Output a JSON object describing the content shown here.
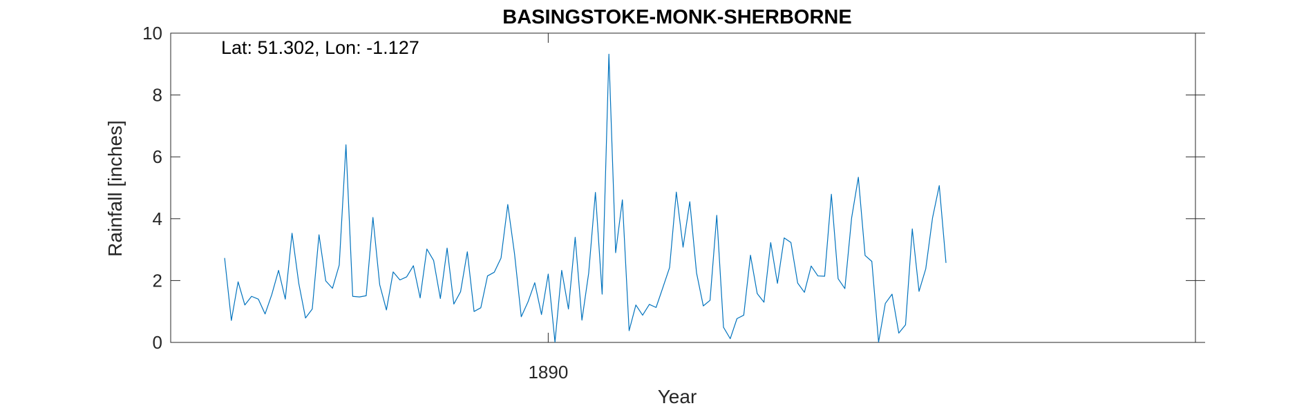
{
  "chart_data": {
    "type": "line",
    "title": "BASINGSTOKE-MONK-SHERBORNE",
    "annotation": "Lat: 51.302, Lon: -1.127",
    "xlabel": "Year",
    "ylabel": "Rainfall [inches]",
    "xlim": [
      1885.3333,
      1898.0
    ],
    "ylim": [
      0,
      10
    ],
    "x_ticks": [
      1890
    ],
    "x_tick_labels": [
      "1890"
    ],
    "y_ticks": [
      0,
      2,
      4,
      6,
      8,
      10
    ],
    "y_tick_labels": [
      "0",
      "2",
      "4",
      "6",
      "8",
      "10"
    ],
    "grid": false,
    "series": [
      {
        "name": "Rainfall",
        "color": "#0072BD",
        "x_start": 1886.0,
        "x_step": 0.083333,
        "values": [
          2.73,
          0.71,
          1.96,
          1.21,
          1.49,
          1.4,
          0.92,
          1.55,
          2.33,
          1.4,
          3.53,
          1.91,
          0.79,
          1.08,
          3.48,
          1.99,
          1.75,
          2.5,
          6.39,
          1.49,
          1.47,
          1.51,
          4.04,
          1.87,
          1.05,
          2.28,
          2.02,
          2.12,
          2.48,
          1.44,
          3.02,
          2.65,
          1.42,
          3.05,
          1.24,
          1.64,
          2.93,
          1.0,
          1.12,
          2.15,
          2.27,
          2.73,
          4.46,
          2.87,
          0.83,
          1.31,
          1.93,
          0.9,
          2.21,
          0.01,
          2.33,
          1.08,
          3.4,
          0.72,
          2.24,
          4.85,
          1.56,
          9.32,
          2.9,
          4.61,
          0.38,
          1.21,
          0.88,
          1.23,
          1.13,
          1.77,
          2.42,
          4.86,
          3.08,
          4.55,
          2.25,
          1.18,
          1.36,
          4.11,
          0.49,
          0.12,
          0.77,
          0.88,
          2.82,
          1.58,
          1.3,
          3.23,
          1.91,
          3.38,
          3.23,
          1.92,
          1.62,
          2.47,
          2.15,
          2.14,
          4.79,
          2.06,
          1.74,
          4.02,
          5.34,
          2.81,
          2.62,
          0.01,
          1.26,
          1.56,
          0.3,
          0.57,
          3.67,
          1.65,
          2.38,
          4.02,
          5.07,
          2.57
        ]
      }
    ]
  }
}
